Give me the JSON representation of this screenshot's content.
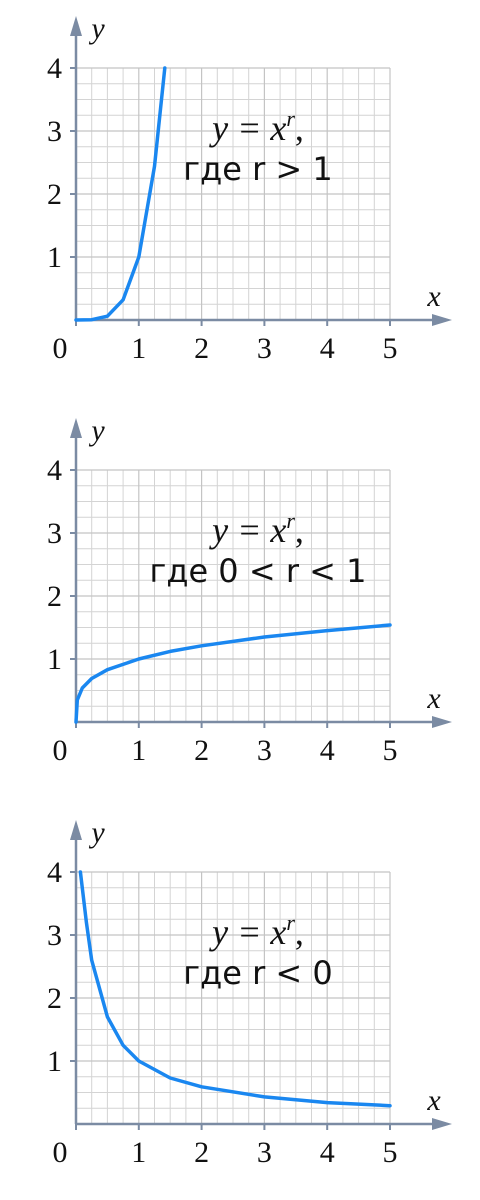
{
  "chart_data": [
    {
      "type": "line",
      "x_label": "x",
      "y_label": "y",
      "annotation": {
        "base": "y = x",
        "exponent": "r",
        "suffix": ",",
        "condition": "где r > 1"
      },
      "x": [
        0,
        0.25,
        0.5,
        0.75,
        1,
        1.25,
        1.414
      ],
      "series": [
        {
          "color": "#1a87f0",
          "values": [
            0,
            0.004,
            0.06,
            0.32,
            1,
            2.44,
            4
          ]
        }
      ],
      "xlim": [
        0,
        5
      ],
      "ylim": [
        0,
        4
      ],
      "xticks": [
        0,
        1,
        2,
        3,
        4,
        5
      ],
      "yticks": [
        1,
        2,
        3,
        4
      ],
      "grid": true
    },
    {
      "type": "line",
      "x_label": "x",
      "y_label": "y",
      "annotation": {
        "base": "y = x",
        "exponent": "r",
        "suffix": ",",
        "condition": "где 0 < r < 1"
      },
      "x": [
        0,
        0.02,
        0.1,
        0.25,
        0.5,
        1,
        1.5,
        2,
        3,
        4,
        5
      ],
      "series": [
        {
          "color": "#1a87f0",
          "values": [
            0,
            0.35,
            0.54,
            0.69,
            0.83,
            1,
            1.12,
            1.21,
            1.35,
            1.45,
            1.54
          ]
        }
      ],
      "xlim": [
        0,
        5
      ],
      "ylim": [
        0,
        4
      ],
      "xticks": [
        0,
        1,
        2,
        3,
        4,
        5
      ],
      "yticks": [
        1,
        2,
        3,
        4
      ],
      "grid": true
    },
    {
      "type": "line",
      "x_label": "x",
      "y_label": "y",
      "annotation": {
        "base": "y = x",
        "exponent": "r",
        "suffix": ",",
        "condition": "где r < 0"
      },
      "x": [
        0.07,
        0.165,
        0.25,
        0.5,
        0.75,
        1,
        1.5,
        2,
        3,
        4,
        5
      ],
      "series": [
        {
          "color": "#1a87f0",
          "values": [
            4,
            3.2,
            2.6,
            1.7,
            1.25,
            1,
            0.73,
            0.59,
            0.43,
            0.34,
            0.29
          ]
        }
      ],
      "xlim": [
        0,
        5
      ],
      "ylim": [
        0,
        4
      ],
      "xticks": [
        0,
        1,
        2,
        3,
        4,
        5
      ],
      "yticks": [
        1,
        2,
        3,
        4
      ],
      "grid": true
    }
  ]
}
